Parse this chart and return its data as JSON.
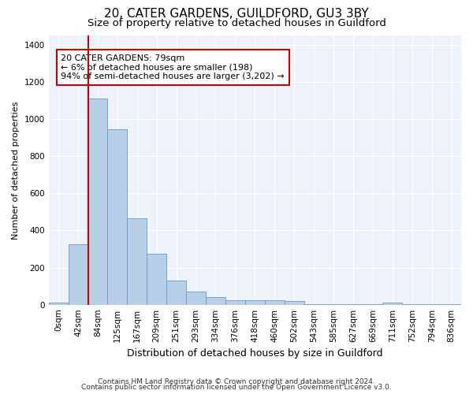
{
  "title1": "20, CATER GARDENS, GUILDFORD, GU3 3BY",
  "title2": "Size of property relative to detached houses in Guildford",
  "xlabel": "Distribution of detached houses by size in Guildford",
  "ylabel": "Number of detached properties",
  "bin_labels": [
    "0sqm",
    "42sqm",
    "84sqm",
    "125sqm",
    "167sqm",
    "209sqm",
    "251sqm",
    "293sqm",
    "334sqm",
    "376sqm",
    "418sqm",
    "460sqm",
    "502sqm",
    "543sqm",
    "585sqm",
    "627sqm",
    "669sqm",
    "711sqm",
    "752sqm",
    "794sqm",
    "836sqm"
  ],
  "bar_values": [
    10,
    325,
    1110,
    945,
    465,
    275,
    130,
    70,
    40,
    22,
    25,
    22,
    18,
    5,
    5,
    5,
    5,
    12,
    5,
    5,
    5
  ],
  "bar_color": "#b8cfe8",
  "bar_edge_color": "#6699cc",
  "vline_color": "#cc0000",
  "vline_x_index": 2,
  "annotation_text": "20 CATER GARDENS: 79sqm\n← 6% of detached houses are smaller (198)\n94% of semi-detached houses are larger (3,202) →",
  "annotation_box_color": "#ffffff",
  "annotation_box_edge": "#cc0000",
  "ylim": [
    0,
    1450
  ],
  "yticks": [
    0,
    200,
    400,
    600,
    800,
    1000,
    1200,
    1400
  ],
  "bg_color": "#eef2fb",
  "footnote1": "Contains HM Land Registry data © Crown copyright and database right 2024.",
  "footnote2": "Contains public sector information licensed under the Open Government Licence v3.0.",
  "title1_fontsize": 11,
  "title2_fontsize": 9.5,
  "xlabel_fontsize": 9,
  "ylabel_fontsize": 8,
  "tick_fontsize": 7.5,
  "annot_fontsize": 8,
  "footnote_fontsize": 6.5
}
